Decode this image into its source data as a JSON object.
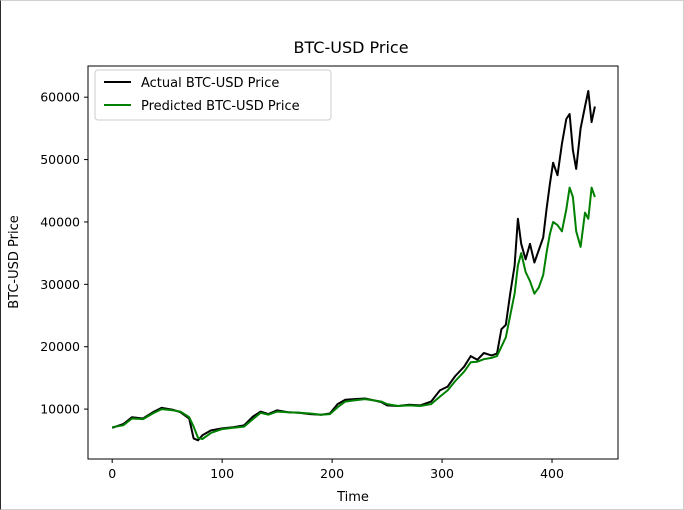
{
  "chart_data": {
    "type": "line",
    "title": "BTC-USD Price",
    "xlabel": "Time",
    "ylabel": "BTC-USD Price",
    "xlim": [
      -22,
      460
    ],
    "ylim": [
      2000,
      65000
    ],
    "xticks": [
      0,
      100,
      200,
      300,
      400
    ],
    "yticks": [
      10000,
      20000,
      30000,
      40000,
      50000,
      60000
    ],
    "grid": false,
    "legend": "upper left",
    "series": [
      {
        "name": "Actual BTC-USD Price",
        "color": "#000000",
        "points": [
          [
            0,
            7000
          ],
          [
            10,
            7600
          ],
          [
            18,
            8700
          ],
          [
            28,
            8500
          ],
          [
            38,
            9600
          ],
          [
            45,
            10200
          ],
          [
            55,
            9900
          ],
          [
            62,
            9500
          ],
          [
            70,
            8500
          ],
          [
            74,
            5300
          ],
          [
            78,
            5000
          ],
          [
            82,
            5800
          ],
          [
            90,
            6600
          ],
          [
            100,
            6900
          ],
          [
            110,
            7100
          ],
          [
            120,
            7400
          ],
          [
            128,
            8800
          ],
          [
            135,
            9600
          ],
          [
            142,
            9200
          ],
          [
            150,
            9800
          ],
          [
            160,
            9500
          ],
          [
            170,
            9400
          ],
          [
            180,
            9200
          ],
          [
            190,
            9100
          ],
          [
            198,
            9300
          ],
          [
            205,
            10800
          ],
          [
            212,
            11500
          ],
          [
            220,
            11600
          ],
          [
            230,
            11700
          ],
          [
            238,
            11400
          ],
          [
            245,
            11100
          ],
          [
            250,
            10600
          ],
          [
            260,
            10500
          ],
          [
            270,
            10700
          ],
          [
            280,
            10600
          ],
          [
            290,
            11200
          ],
          [
            298,
            13000
          ],
          [
            305,
            13600
          ],
          [
            312,
            15300
          ],
          [
            320,
            16800
          ],
          [
            326,
            18500
          ],
          [
            332,
            17900
          ],
          [
            338,
            19000
          ],
          [
            345,
            18600
          ],
          [
            350,
            18900
          ],
          [
            354,
            22800
          ],
          [
            358,
            23500
          ],
          [
            362,
            28500
          ],
          [
            366,
            33000
          ],
          [
            369,
            40500
          ],
          [
            372,
            36500
          ],
          [
            376,
            34000
          ],
          [
            380,
            36500
          ],
          [
            384,
            33500
          ],
          [
            388,
            35500
          ],
          [
            392,
            37500
          ],
          [
            395,
            42000
          ],
          [
            398,
            46000
          ],
          [
            401,
            49500
          ],
          [
            405,
            47500
          ],
          [
            409,
            52500
          ],
          [
            413,
            56500
          ],
          [
            416,
            57300
          ],
          [
            419,
            51500
          ],
          [
            422,
            48500
          ],
          [
            426,
            55000
          ],
          [
            430,
            58500
          ],
          [
            433,
            61000
          ],
          [
            436,
            56000
          ],
          [
            439,
            58500
          ]
        ]
      },
      {
        "name": "Predicted BTC-USD Price",
        "color": "#008000",
        "points": [
          [
            0,
            7100
          ],
          [
            10,
            7400
          ],
          [
            18,
            8500
          ],
          [
            28,
            8400
          ],
          [
            38,
            9400
          ],
          [
            45,
            10000
          ],
          [
            55,
            9800
          ],
          [
            62,
            9600
          ],
          [
            70,
            8700
          ],
          [
            74,
            7200
          ],
          [
            78,
            5400
          ],
          [
            82,
            5200
          ],
          [
            90,
            6200
          ],
          [
            100,
            6800
          ],
          [
            110,
            7000
          ],
          [
            120,
            7200
          ],
          [
            128,
            8400
          ],
          [
            135,
            9400
          ],
          [
            142,
            9100
          ],
          [
            150,
            9600
          ],
          [
            160,
            9500
          ],
          [
            170,
            9400
          ],
          [
            180,
            9300
          ],
          [
            190,
            9100
          ],
          [
            198,
            9200
          ],
          [
            205,
            10300
          ],
          [
            212,
            11200
          ],
          [
            220,
            11400
          ],
          [
            230,
            11600
          ],
          [
            238,
            11400
          ],
          [
            245,
            11200
          ],
          [
            250,
            10800
          ],
          [
            260,
            10500
          ],
          [
            270,
            10600
          ],
          [
            280,
            10500
          ],
          [
            290,
            10800
          ],
          [
            298,
            12000
          ],
          [
            305,
            13000
          ],
          [
            312,
            14500
          ],
          [
            320,
            16000
          ],
          [
            326,
            17500
          ],
          [
            332,
            17600
          ],
          [
            338,
            18000
          ],
          [
            345,
            18200
          ],
          [
            350,
            18500
          ],
          [
            354,
            20000
          ],
          [
            358,
            21500
          ],
          [
            362,
            25000
          ],
          [
            366,
            28500
          ],
          [
            369,
            33000
          ],
          [
            372,
            35000
          ],
          [
            376,
            32000
          ],
          [
            380,
            30500
          ],
          [
            384,
            28500
          ],
          [
            388,
            29500
          ],
          [
            392,
            31500
          ],
          [
            395,
            35000
          ],
          [
            398,
            38000
          ],
          [
            401,
            40000
          ],
          [
            405,
            39500
          ],
          [
            409,
            38500
          ],
          [
            413,
            42000
          ],
          [
            416,
            45500
          ],
          [
            419,
            44000
          ],
          [
            422,
            38500
          ],
          [
            426,
            36000
          ],
          [
            430,
            41500
          ],
          [
            433,
            40500
          ],
          [
            436,
            45500
          ],
          [
            439,
            44000
          ]
        ]
      }
    ]
  }
}
